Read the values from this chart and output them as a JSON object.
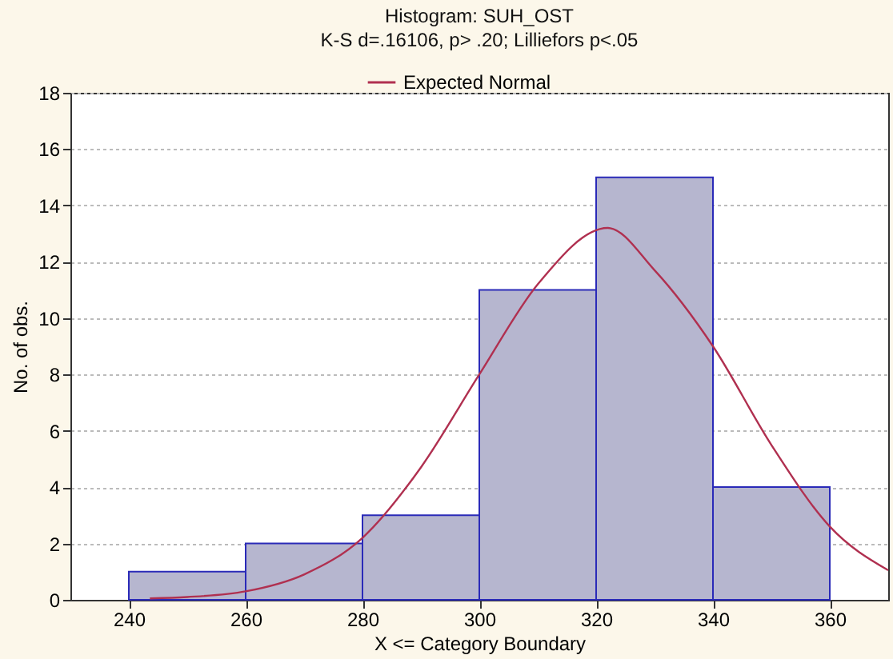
{
  "chart_data": {
    "type": "histogram",
    "title": "Histogram: SUH_OST",
    "subtitle": "K-S d=.16106, p> .20; Lilliefors p<.05",
    "xlabel": "X <= Category Boundary",
    "ylabel": "No. of obs.",
    "bins": [
      240,
      260,
      280,
      300,
      320,
      340,
      360
    ],
    "values": [
      1,
      2,
      3,
      11,
      15,
      4
    ],
    "color": "#b6b6cf",
    "series": [
      {
        "name": "Expected Normal",
        "type": "line",
        "color": "#b03050",
        "x": [
          243.6,
          250,
          260,
          270,
          280,
          290,
          300,
          310,
          322,
          330,
          340,
          350,
          360,
          370
        ],
        "values": [
          0.05,
          0.1,
          0.3,
          0.9,
          2.2,
          4.7,
          8.0,
          11.2,
          13.2,
          11.7,
          9.0,
          5.5,
          2.6,
          1.05
        ]
      }
    ],
    "xlim": [
      230,
      370
    ],
    "xticks": [
      240,
      260,
      280,
      300,
      320,
      340,
      360
    ],
    "ylim": [
      0,
      18
    ],
    "yticks": [
      0,
      2,
      4,
      6,
      8,
      10,
      12,
      14,
      16,
      18
    ],
    "grid": "y",
    "legend": "top"
  }
}
